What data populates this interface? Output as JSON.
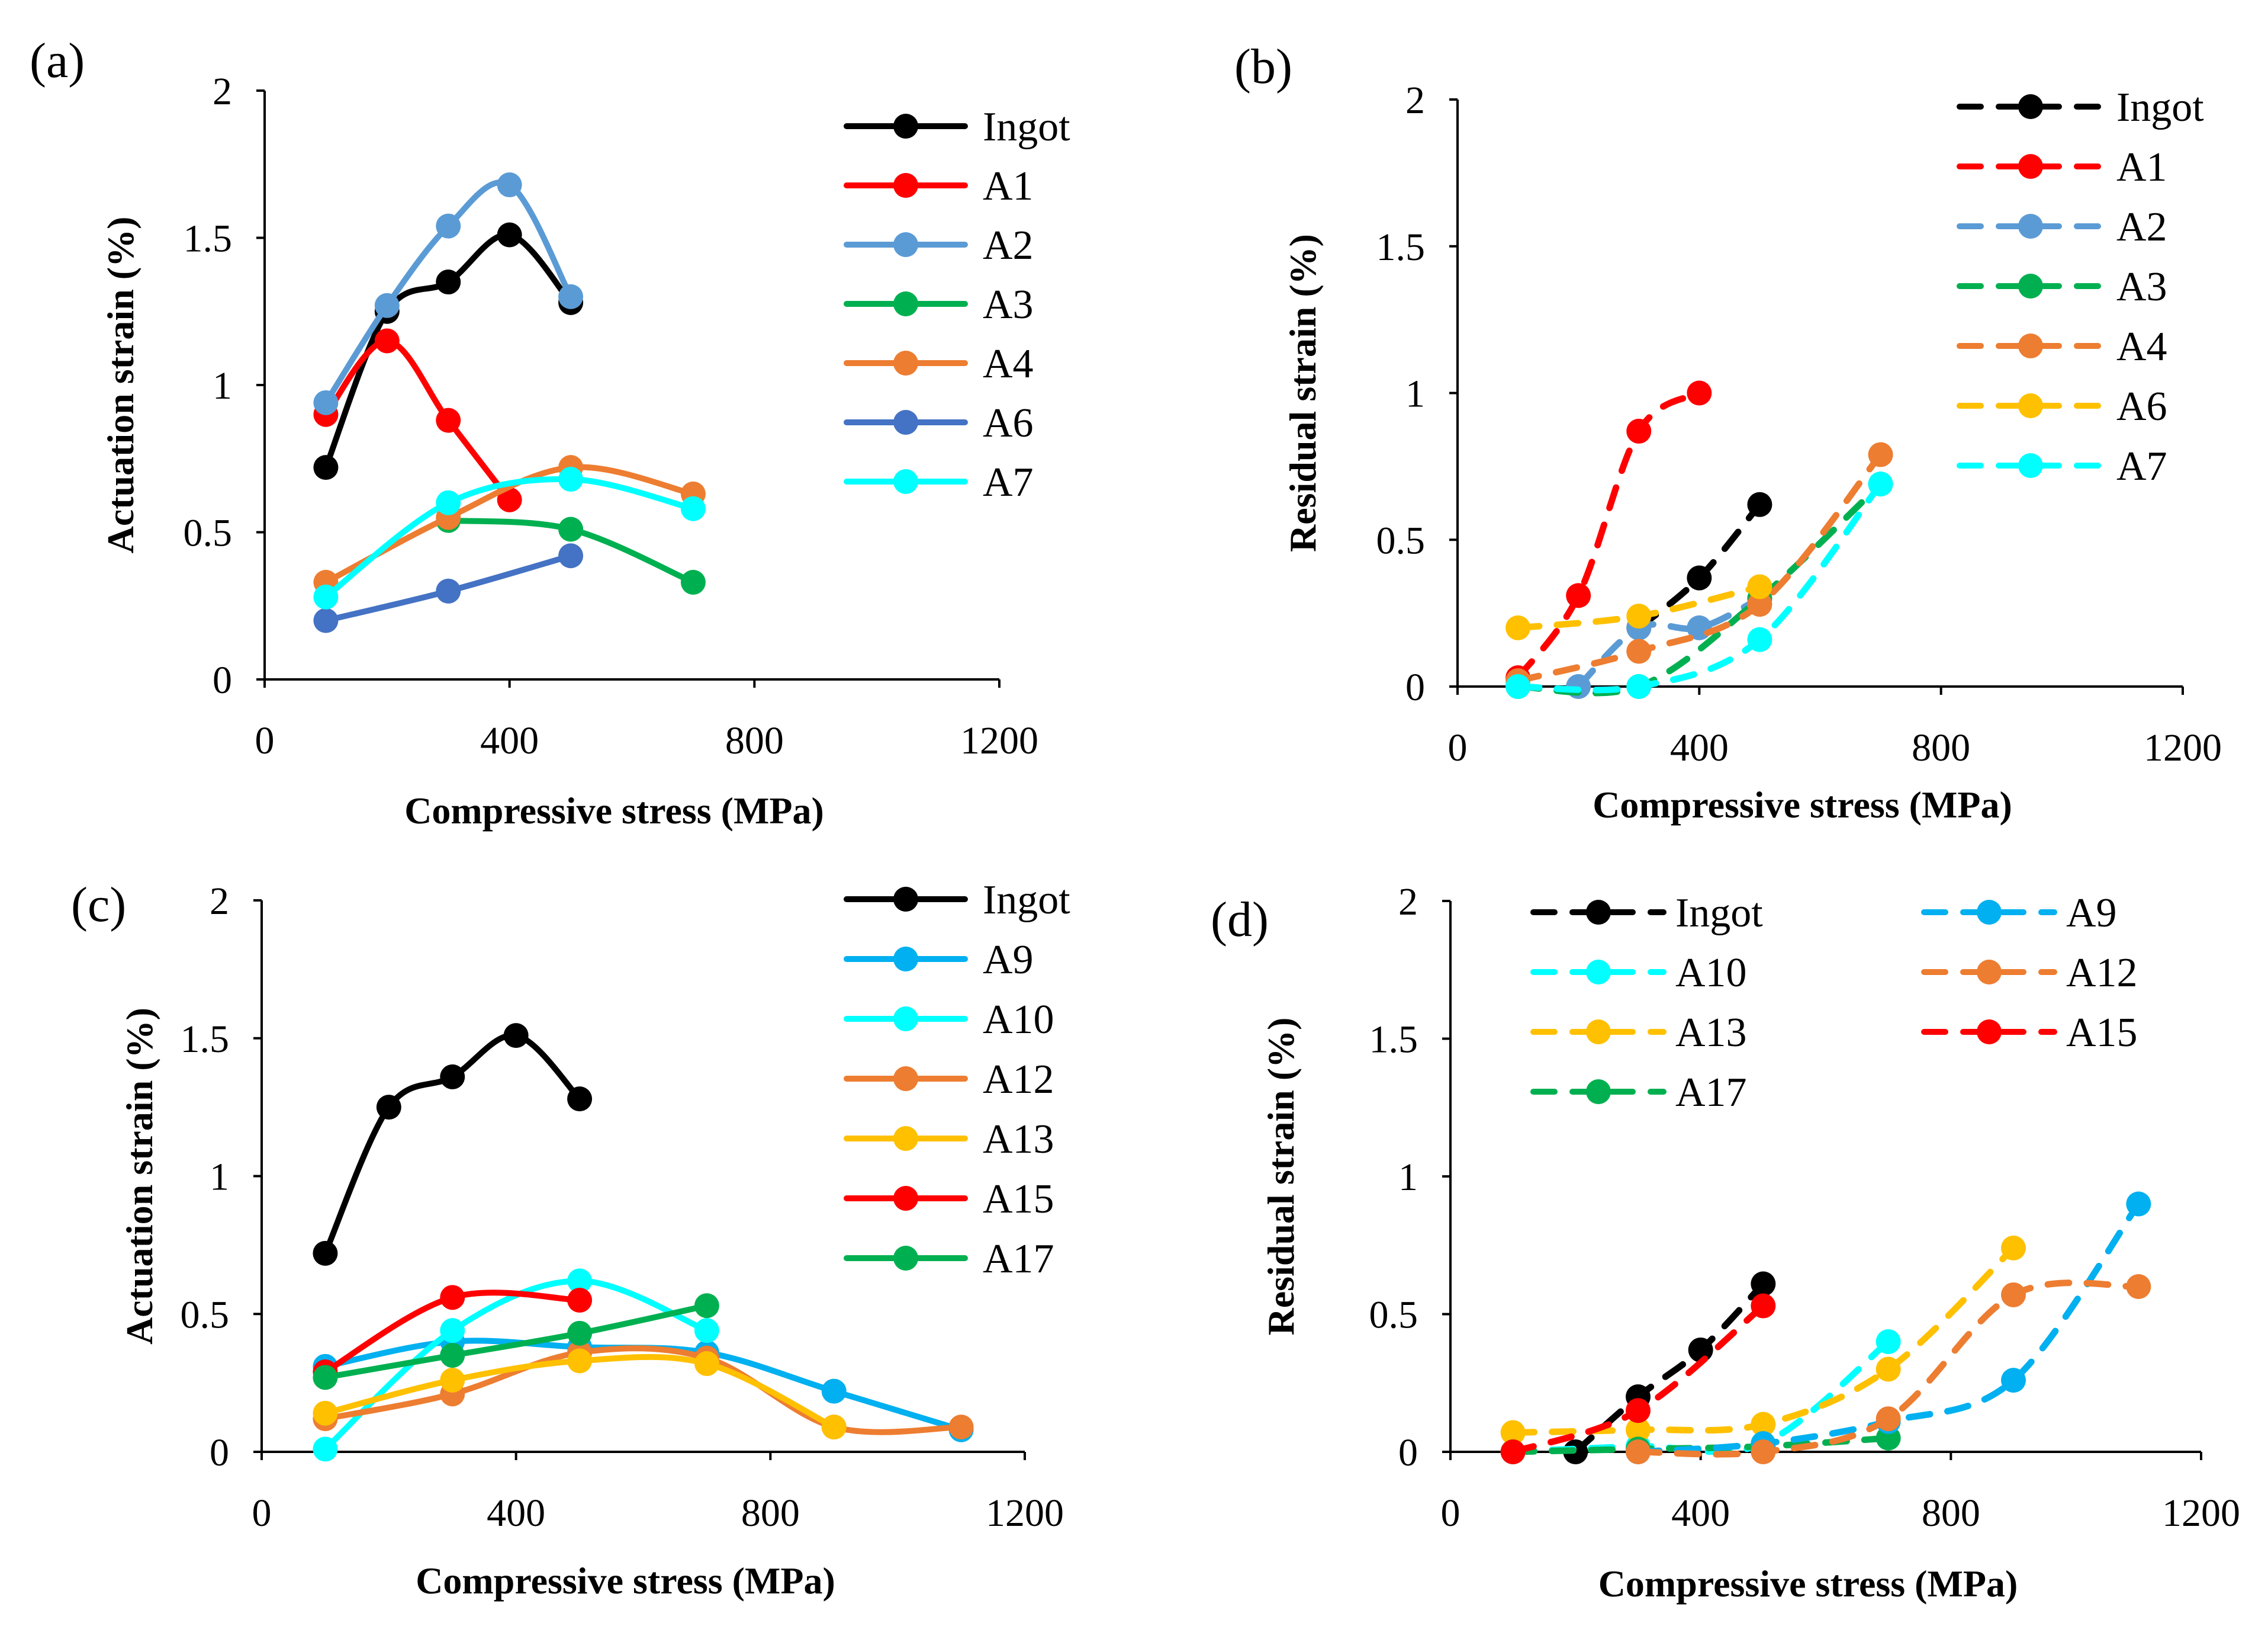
{
  "chart_data": [
    {
      "panel_label": "(a)",
      "type": "line",
      "style": "solid",
      "xlabel": "Compressive stress (MPa)",
      "ylabel": "Actuation strain (%)",
      "xlim": [
        0,
        1200
      ],
      "ylim": [
        0,
        2
      ],
      "xticks": [
        "0",
        "400",
        "800",
        "1200"
      ],
      "yticks": [
        "0",
        "0.5",
        "1",
        "1.5",
        "2"
      ],
      "legend_position": "top-right",
      "series": [
        {
          "name": "Ingot",
          "color": "#000000",
          "x": [
            100,
            200,
            300,
            400,
            500
          ],
          "y": [
            0.72,
            1.25,
            1.35,
            1.51,
            1.28
          ]
        },
        {
          "name": "A1",
          "color": "#ff0000",
          "x": [
            100,
            200,
            300,
            400
          ],
          "y": [
            0.9,
            1.15,
            0.88,
            0.61
          ]
        },
        {
          "name": "A2",
          "color": "#5b9bd5",
          "x": [
            100,
            200,
            300,
            400,
            500
          ],
          "y": [
            0.94,
            1.27,
            1.54,
            1.68,
            1.3
          ]
        },
        {
          "name": "A3",
          "color": "#00b050",
          "x": [
            300,
            500,
            700
          ],
          "y": [
            0.54,
            0.51,
            0.33
          ]
        },
        {
          "name": "A4",
          "color": "#ed7d31",
          "x": [
            100,
            300,
            500,
            700
          ],
          "y": [
            0.33,
            0.55,
            0.72,
            0.63
          ]
        },
        {
          "name": "A6",
          "color": "#4472c4",
          "x": [
            100,
            300,
            500
          ],
          "y": [
            0.2,
            0.3,
            0.42
          ]
        },
        {
          "name": "A7",
          "color": "#00ffff",
          "x": [
            100,
            300,
            500,
            700
          ],
          "y": [
            0.28,
            0.6,
            0.68,
            0.58
          ]
        }
      ]
    },
    {
      "panel_label": "(b)",
      "type": "line",
      "style": "dashed",
      "xlabel": "Compressive stress (MPa)",
      "ylabel": "Residual strain (%)",
      "xlim": [
        0,
        1200
      ],
      "ylim": [
        0,
        2
      ],
      "xticks": [
        "0",
        "400",
        "800",
        "1200"
      ],
      "yticks": [
        "0",
        "0.5",
        "1",
        "1.5",
        "2"
      ],
      "legend_position": "top-right",
      "series": [
        {
          "name": "Ingot",
          "color": "#000000",
          "x": [
            300,
            400,
            500
          ],
          "y": [
            0.2,
            0.37,
            0.62
          ]
        },
        {
          "name": "A1",
          "color": "#ff0000",
          "x": [
            100,
            200,
            300,
            400
          ],
          "y": [
            0.03,
            0.31,
            0.87,
            1.0
          ]
        },
        {
          "name": "A2",
          "color": "#5b9bd5",
          "x": [
            200,
            300,
            400,
            500
          ],
          "y": [
            0.0,
            0.2,
            0.2,
            0.3
          ]
        },
        {
          "name": "A3",
          "color": "#00b050",
          "x": [
            100,
            300,
            500,
            700
          ],
          "y": [
            0.0,
            0.0,
            0.3,
            0.69
          ]
        },
        {
          "name": "A4",
          "color": "#ed7d31",
          "x": [
            100,
            300,
            500,
            700
          ],
          "y": [
            0.02,
            0.12,
            0.28,
            0.79
          ]
        },
        {
          "name": "A6",
          "color": "#ffc000",
          "x": [
            100,
            300,
            500
          ],
          "y": [
            0.2,
            0.24,
            0.34
          ]
        },
        {
          "name": "A7",
          "color": "#00ffff",
          "x": [
            100,
            300,
            500,
            700
          ],
          "y": [
            0.0,
            0.0,
            0.16,
            0.69
          ]
        }
      ]
    },
    {
      "panel_label": "(c)",
      "type": "line",
      "style": "solid",
      "xlabel": "Compressive stress (MPa)",
      "ylabel": "Actuation strain (%)",
      "xlim": [
        0,
        1200
      ],
      "ylim": [
        0,
        2
      ],
      "xticks": [
        "0",
        "400",
        "800",
        "1200"
      ],
      "yticks": [
        "0",
        "0.5",
        "1",
        "1.5",
        "2"
      ],
      "legend_position": "top-right",
      "series": [
        {
          "name": "Ingot",
          "color": "#000000",
          "x": [
            100,
            200,
            300,
            400,
            500
          ],
          "y": [
            0.72,
            1.25,
            1.36,
            1.51,
            1.28
          ]
        },
        {
          "name": "A9",
          "color": "#00b0f0",
          "x": [
            100,
            300,
            500,
            700,
            900,
            1100
          ],
          "y": [
            0.31,
            0.4,
            0.38,
            0.36,
            0.22,
            0.08
          ]
        },
        {
          "name": "A10",
          "color": "#00ffff",
          "x": [
            100,
            300,
            500,
            700
          ],
          "y": [
            0.01,
            0.44,
            0.62,
            0.44
          ]
        },
        {
          "name": "A12",
          "color": "#ed7d31",
          "x": [
            100,
            300,
            500,
            700,
            900,
            1100
          ],
          "y": [
            0.12,
            0.21,
            0.36,
            0.34,
            0.09,
            0.09
          ]
        },
        {
          "name": "A13",
          "color": "#ffc000",
          "x": [
            100,
            300,
            500,
            700,
            900
          ],
          "y": [
            0.14,
            0.26,
            0.33,
            0.32,
            0.09
          ]
        },
        {
          "name": "A15",
          "color": "#ff0000",
          "x": [
            100,
            300,
            500
          ],
          "y": [
            0.29,
            0.56,
            0.55
          ]
        },
        {
          "name": "A17",
          "color": "#00b050",
          "x": [
            100,
            300,
            500,
            700
          ],
          "y": [
            0.27,
            0.35,
            0.43,
            0.53
          ]
        }
      ]
    },
    {
      "panel_label": "(d)",
      "type": "line",
      "style": "dashed",
      "xlabel": "Compressive stress (MPa)",
      "ylabel": "Residual strain (%)",
      "xlim": [
        0,
        1200
      ],
      "ylim": [
        0,
        2
      ],
      "xticks": [
        "0",
        "400",
        "800",
        "1200"
      ],
      "yticks": [
        "0",
        "0.5",
        "1",
        "1.5",
        "2"
      ],
      "legend_position": "top",
      "series": [
        {
          "name": "Ingot",
          "color": "#000000",
          "x": [
            200,
            300,
            400,
            500
          ],
          "y": [
            0.0,
            0.2,
            0.37,
            0.61
          ]
        },
        {
          "name": "A10",
          "color": "#00ffff",
          "x": [
            100,
            300,
            500,
            700
          ],
          "y": [
            0.0,
            0.02,
            0.03,
            0.4
          ]
        },
        {
          "name": "A13",
          "color": "#ffc000",
          "x": [
            100,
            300,
            500,
            700,
            900
          ],
          "y": [
            0.07,
            0.08,
            0.1,
            0.3,
            0.74
          ]
        },
        {
          "name": "A17",
          "color": "#00b050",
          "x": [
            100,
            300,
            500,
            700
          ],
          "y": [
            0.0,
            0.01,
            0.02,
            0.05
          ]
        },
        {
          "name": "A9",
          "color": "#00b0f0",
          "x": [
            300,
            500,
            700,
            900,
            1100
          ],
          "y": [
            0.0,
            0.03,
            0.11,
            0.26,
            0.9
          ]
        },
        {
          "name": "A12",
          "color": "#ed7d31",
          "x": [
            300,
            500,
            700,
            900,
            1100
          ],
          "y": [
            0.0,
            0.0,
            0.12,
            0.57,
            0.6
          ]
        },
        {
          "name": "A15",
          "color": "#ff0000",
          "x": [
            100,
            300,
            500
          ],
          "y": [
            0.0,
            0.15,
            0.53
          ]
        }
      ]
    }
  ]
}
